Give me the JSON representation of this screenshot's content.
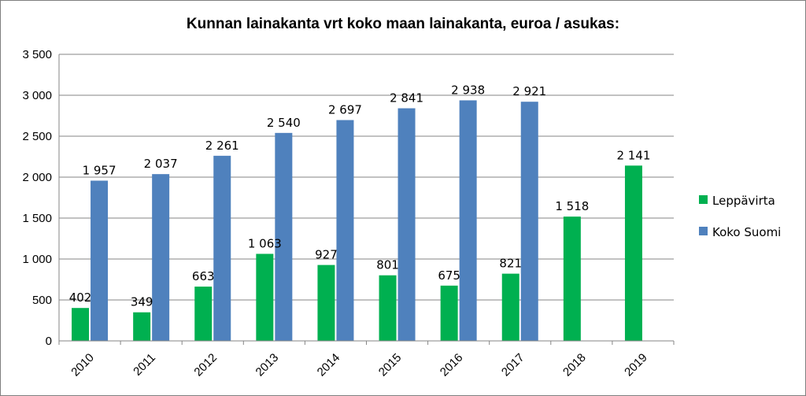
{
  "chart_data": {
    "type": "bar",
    "title": "Kunnan lainakanta vrt koko maan lainakanta, euroa / asukas:",
    "categories": [
      "2010",
      "2011",
      "2012",
      "2013",
      "2014",
      "2015",
      "2016",
      "2017",
      "2018",
      "2019"
    ],
    "series": [
      {
        "name": "Leppävirta",
        "color": "#00b050",
        "values": [
          402,
          349,
          663,
          1063,
          927,
          801,
          675,
          821,
          1518,
          2141
        ],
        "labels": [
          "402",
          "349",
          "663",
          "1 063",
          "927",
          "801",
          "675",
          "821",
          "1 518",
          "2 141"
        ]
      },
      {
        "name": "Koko Suomi",
        "color": "#4f81bd",
        "values": [
          1957,
          2037,
          2261,
          2540,
          2697,
          2841,
          2938,
          2921,
          null,
          null
        ],
        "labels": [
          "1 957",
          "2 037",
          "2 261",
          "2 540",
          "2 697",
          "2 841",
          "2 938",
          "2 921",
          "",
          ""
        ]
      }
    ],
    "ylim": [
      0,
      3500
    ],
    "yticks": [
      {
        "value": 0,
        "label": "0"
      },
      {
        "value": 500,
        "label": "500"
      },
      {
        "value": 1000,
        "label": "1 000"
      },
      {
        "value": 1500,
        "label": "1 500"
      },
      {
        "value": 2000,
        "label": "2 000"
      },
      {
        "value": 2500,
        "label": "2 500"
      },
      {
        "value": 3000,
        "label": "3 000"
      },
      {
        "value": 3500,
        "label": "3 500"
      }
    ],
    "grid": true,
    "legend_position": "right",
    "xlabel": "",
    "ylabel": ""
  }
}
